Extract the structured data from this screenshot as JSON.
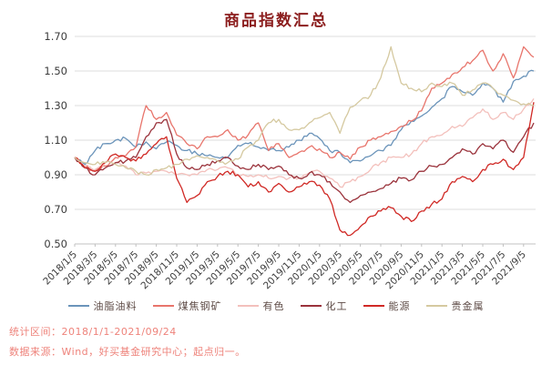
{
  "title": "商品指数汇总",
  "footnotes": {
    "period": "统计区间：2018/1/1-2021/09/24",
    "source": "数据来源：Wind，好买基金研究中心；起点归一。"
  },
  "colors": {
    "title": "#8b1d1d",
    "footnote": "#ee837b",
    "gridline": "#dcdcdc",
    "axis": "#c0c0c0",
    "tick_label": "#3b3b3b",
    "legend_text": "#5d4a45"
  },
  "chart_data": {
    "type": "line",
    "title": "商品指数汇总",
    "xlabel": "",
    "ylabel": "",
    "ylim": [
      0.5,
      1.7
    ],
    "y_ticks": [
      0.5,
      0.7,
      0.9,
      1.1,
      1.3,
      1.5,
      1.7
    ],
    "grid": "horizontal",
    "legend_position": "bottom",
    "x_tick_labels": [
      "2018/1/5",
      "2018/3/5",
      "2018/5/5",
      "2018/7/5",
      "2018/9/5",
      "2018/11/5",
      "2019/1/5",
      "2019/3/5",
      "2019/5/5",
      "2019/7/5",
      "2019/9/5",
      "2019/11/5",
      "2020/1/5",
      "2020/3/5",
      "2020/5/5",
      "2020/7/5",
      "2020/9/5",
      "2020/11/5",
      "2021/1/5",
      "2021/3/5",
      "2021/5/5",
      "2021/7/5",
      "2021/9/5"
    ],
    "x_note": "monthly estimated values 2018/1 … 2021/9 plus final point 2021/9/24, normalized to 1.0 at start",
    "series": [
      {
        "name": "油脂油料",
        "color": "#6b94ba",
        "values": [
          1.0,
          0.96,
          1.04,
          1.08,
          1.1,
          1.11,
          1.06,
          1.09,
          1.05,
          1.09,
          1.07,
          1.04,
          1.02,
          1.01,
          1.0,
          1.0,
          1.07,
          1.08,
          1.06,
          1.04,
          1.04,
          1.06,
          1.1,
          1.14,
          1.11,
          1.04,
          1.03,
          0.97,
          0.98,
          1.01,
          1.04,
          1.07,
          1.16,
          1.21,
          1.24,
          1.29,
          1.34,
          1.41,
          1.38,
          1.36,
          1.43,
          1.4,
          1.32,
          1.44,
          1.47,
          1.5
        ]
      },
      {
        "name": "煤焦钢矿",
        "color": "#e8756c",
        "values": [
          1.0,
          0.95,
          0.92,
          0.95,
          1.0,
          1.01,
          1.06,
          1.3,
          1.22,
          1.26,
          1.13,
          1.08,
          1.05,
          1.12,
          1.12,
          1.16,
          1.1,
          1.13,
          1.2,
          1.04,
          1.08,
          1.0,
          1.03,
          1.06,
          1.05,
          1.0,
          1.03,
          0.99,
          1.06,
          1.1,
          1.12,
          1.15,
          1.18,
          1.21,
          1.27,
          1.4,
          1.43,
          1.48,
          1.52,
          1.56,
          1.62,
          1.5,
          1.6,
          1.46,
          1.64,
          1.58
        ]
      },
      {
        "name": "有色",
        "color": "#f3c0bc",
        "values": [
          1.0,
          0.95,
          0.93,
          0.97,
          0.97,
          0.95,
          0.9,
          0.91,
          0.92,
          0.92,
          0.9,
          0.9,
          0.9,
          0.93,
          0.93,
          0.94,
          0.9,
          0.89,
          0.9,
          0.88,
          0.89,
          0.88,
          0.88,
          0.91,
          0.92,
          0.88,
          0.83,
          0.86,
          0.89,
          0.93,
          0.97,
          1.0,
          1.0,
          1.02,
          1.08,
          1.12,
          1.13,
          1.18,
          1.18,
          1.23,
          1.28,
          1.22,
          1.26,
          1.22,
          1.28,
          1.34
        ]
      },
      {
        "name": "化工",
        "color": "#9a323b",
        "values": [
          1.0,
          0.94,
          0.9,
          0.94,
          0.97,
          0.98,
          1.0,
          1.12,
          1.2,
          1.22,
          1.02,
          0.94,
          0.93,
          0.96,
          0.98,
          1.0,
          0.95,
          0.93,
          0.96,
          0.93,
          0.95,
          0.9,
          0.88,
          0.91,
          0.9,
          0.86,
          0.8,
          0.74,
          0.78,
          0.8,
          0.82,
          0.85,
          0.88,
          0.87,
          0.92,
          0.95,
          0.96,
          1.0,
          1.05,
          1.02,
          1.08,
          1.05,
          1.1,
          1.03,
          1.12,
          1.2
        ]
      },
      {
        "name": "能源",
        "color": "#d02925",
        "values": [
          1.0,
          0.94,
          0.92,
          0.97,
          1.02,
          1.0,
          0.98,
          1.02,
          1.08,
          1.12,
          0.88,
          0.74,
          0.78,
          0.86,
          0.89,
          0.92,
          0.9,
          0.83,
          0.86,
          0.8,
          0.85,
          0.8,
          0.83,
          0.86,
          0.84,
          0.76,
          0.58,
          0.55,
          0.6,
          0.66,
          0.69,
          0.71,
          0.66,
          0.63,
          0.69,
          0.73,
          0.76,
          0.86,
          0.89,
          0.86,
          0.93,
          0.96,
          0.99,
          0.93,
          1.0,
          1.32
        ]
      },
      {
        "name": "贵金属",
        "color": "#d5c9a0",
        "values": [
          1.0,
          0.97,
          0.96,
          0.97,
          0.96,
          0.94,
          0.92,
          0.9,
          0.93,
          0.94,
          0.96,
          0.99,
          1.01,
          1.0,
          0.98,
          0.97,
          0.99,
          1.06,
          1.1,
          1.2,
          1.22,
          1.16,
          1.16,
          1.2,
          1.23,
          1.26,
          1.14,
          1.29,
          1.33,
          1.36,
          1.46,
          1.64,
          1.43,
          1.4,
          1.38,
          1.43,
          1.41,
          1.43,
          1.36,
          1.39,
          1.43,
          1.4,
          1.36,
          1.33,
          1.31,
          1.3
        ]
      }
    ]
  }
}
